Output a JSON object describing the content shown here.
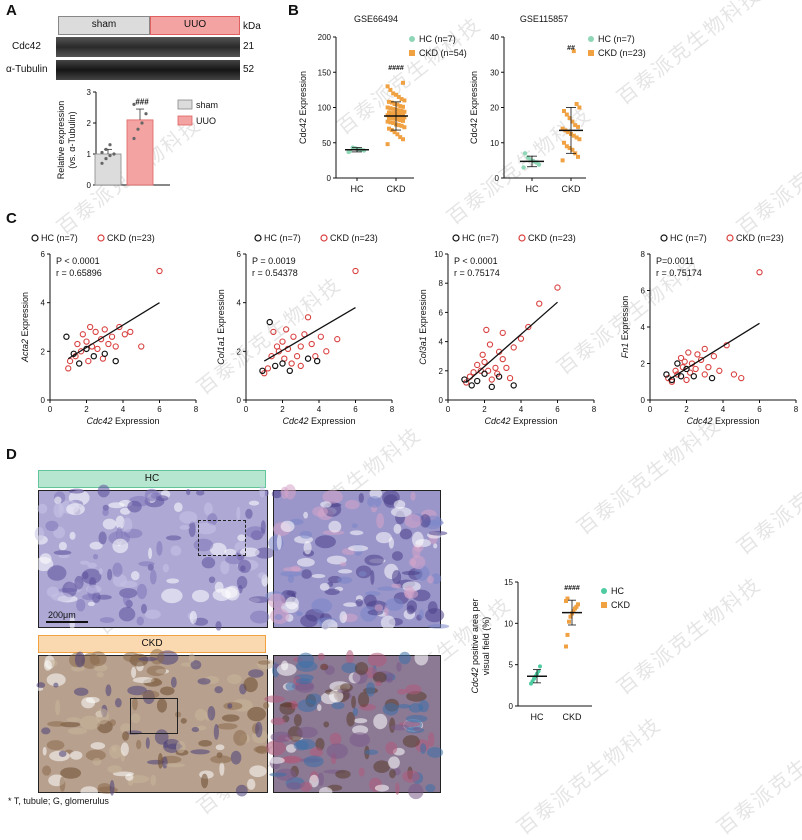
{
  "figure": {
    "panels": {
      "a": "A",
      "b": "B",
      "c": "C",
      "d": "D"
    },
    "watermark": "百泰派克生物科技",
    "footnote": "* T, tubule; G, glomerulus"
  },
  "panel_a": {
    "group_sham": "sham",
    "group_uuo": "UUO",
    "kda_label": "kDa",
    "rows": [
      {
        "protein": "Cdc42",
        "kda": "21"
      },
      {
        "protein": "α-Tubulin",
        "kda": "52"
      }
    ],
    "colors": {
      "sham": "#dcdcdc",
      "uuo": "#f4a3a3",
      "uuo_border": "#e06060"
    }
  },
  "panel_d": {
    "hc_label": "HC",
    "ckd_label": "CKD",
    "scale_bar": "200μm",
    "colors": {
      "hc": "#8fd6b6",
      "ckd": "#f7c48a"
    }
  },
  "chart_data": [
    {
      "id": "a_bar",
      "type": "bar",
      "categories": [
        "sham",
        "UUO"
      ],
      "values": [
        1.0,
        2.1
      ],
      "errors": [
        0.15,
        0.35
      ],
      "points": [
        [
          0.7,
          0.85,
          0.95,
          1.0,
          1.05,
          1.15,
          1.3
        ],
        [
          1.5,
          1.8,
          2.0,
          2.3,
          2.6
        ]
      ],
      "ylabel": "Relative expression\n(vs. α-Tubulin)",
      "ylim": [
        0,
        3
      ],
      "yticks": [
        0,
        1,
        2,
        3
      ],
      "significance": "###",
      "legend": [
        "sham",
        "UUO"
      ],
      "colors": [
        "#dcdcdc",
        "#f4a3a3"
      ]
    },
    {
      "id": "b_gse66494",
      "type": "scatter",
      "title": "GSE66494",
      "categories": [
        "HC",
        "CKD"
      ],
      "ylabel": "Cdc42 Expression",
      "ylim": [
        0,
        200
      ],
      "yticks": [
        0,
        50,
        100,
        150,
        200
      ],
      "means": [
        40,
        88
      ],
      "sd": [
        3,
        20
      ],
      "points": [
        [
          37,
          39,
          40,
          41,
          42,
          43,
          38
        ],
        [
          48,
          55,
          58,
          62,
          65,
          68,
          70,
          72,
          74,
          75,
          76,
          78,
          79,
          80,
          81,
          82,
          83,
          84,
          85,
          85,
          86,
          86,
          87,
          87,
          88,
          88,
          89,
          90,
          90,
          91,
          92,
          92,
          93,
          94,
          95,
          96,
          97,
          98,
          99,
          100,
          101,
          102,
          104,
          105,
          107,
          108,
          110,
          112,
          115,
          118,
          120,
          125,
          130,
          135
        ]
      ],
      "significance": "####",
      "legend": [
        "HC (n=7)",
        "CKD (n=54)"
      ],
      "colors": [
        "#8fd6b6",
        "#f0a142"
      ]
    },
    {
      "id": "b_gse115857",
      "type": "scatter",
      "title": "GSE115857",
      "categories": [
        "HC",
        "CKD"
      ],
      "ylabel": "Cdc42 Expression",
      "ylim": [
        0,
        40
      ],
      "yticks": [
        0,
        10,
        20,
        30,
        40
      ],
      "means": [
        4.7,
        13.5
      ],
      "sd": [
        1.5,
        6.5
      ],
      "points": [
        [
          3.0,
          3.8,
          4.4,
          4.8,
          5.2,
          5.8,
          7.0
        ],
        [
          5.0,
          6.0,
          7.0,
          8.0,
          8.5,
          9.0,
          10.0,
          11.0,
          11.5,
          12.0,
          12.5,
          13.0,
          13.5,
          14.0,
          14.5,
          15.0,
          16.0,
          17.0,
          18.0,
          19.0,
          20.0,
          21.0,
          36.0
        ]
      ],
      "significance": "##",
      "legend": [
        "HC (n=7)",
        "CKD (n=23)"
      ],
      "colors": [
        "#8fd6b6",
        "#f0a142"
      ]
    },
    {
      "id": "c_acta2",
      "type": "scatter",
      "ylabel": "Acta2 Expression",
      "xlabel": "Cdc42 Expression",
      "xlim": [
        0,
        8
      ],
      "ylim": [
        0,
        6
      ],
      "xticks": [
        0,
        2,
        4,
        6,
        8
      ],
      "yticks": [
        0,
        2,
        4,
        6
      ],
      "stats": [
        "P < 0.0001",
        "r = 0.65896"
      ],
      "legend": [
        "HC (n=7)",
        "CKD (n=23)"
      ],
      "fit": [
        [
          1.0,
          1.7
        ],
        [
          6.0,
          4.0
        ]
      ],
      "hc": [
        [
          0.9,
          2.6
        ],
        [
          1.3,
          1.9
        ],
        [
          1.6,
          1.5
        ],
        [
          2.0,
          2.1
        ],
        [
          2.4,
          1.8
        ],
        [
          3.0,
          1.9
        ],
        [
          3.6,
          1.6
        ]
      ],
      "ckd": [
        [
          1.0,
          1.3
        ],
        [
          1.1,
          1.6
        ],
        [
          1.4,
          1.8
        ],
        [
          1.5,
          2.3
        ],
        [
          1.7,
          2.0
        ],
        [
          1.8,
          2.7
        ],
        [
          2.0,
          2.4
        ],
        [
          2.1,
          1.6
        ],
        [
          2.2,
          3.0
        ],
        [
          2.3,
          2.2
        ],
        [
          2.5,
          2.8
        ],
        [
          2.6,
          2.1
        ],
        [
          2.8,
          2.5
        ],
        [
          2.9,
          1.7
        ],
        [
          3.0,
          2.9
        ],
        [
          3.2,
          2.3
        ],
        [
          3.4,
          2.6
        ],
        [
          3.6,
          2.2
        ],
        [
          3.8,
          3.0
        ],
        [
          4.1,
          2.7
        ],
        [
          4.4,
          2.8
        ],
        [
          5.0,
          2.2
        ],
        [
          6.0,
          5.3
        ]
      ]
    },
    {
      "id": "c_col1a1",
      "type": "scatter",
      "ylabel": "Col1a1 Expression",
      "xlabel": "Cdc42 Expression",
      "xlim": [
        0,
        8
      ],
      "ylim": [
        0,
        6
      ],
      "xticks": [
        0,
        2,
        4,
        6,
        8
      ],
      "yticks": [
        0,
        2,
        4,
        6
      ],
      "stats": [
        "P = 0.0019",
        "r = 0.54378"
      ],
      "legend": [
        "HC (n=7)",
        "CKD (n=23)"
      ],
      "fit": [
        [
          1.0,
          1.6
        ],
        [
          6.0,
          3.8
        ]
      ],
      "hc": [
        [
          0.9,
          1.2
        ],
        [
          1.3,
          3.2
        ],
        [
          1.6,
          1.4
        ],
        [
          2.0,
          1.5
        ],
        [
          2.4,
          1.2
        ],
        [
          3.4,
          1.7
        ],
        [
          3.9,
          1.6
        ]
      ],
      "ckd": [
        [
          1.0,
          1.1
        ],
        [
          1.2,
          1.3
        ],
        [
          1.4,
          1.8
        ],
        [
          1.5,
          2.8
        ],
        [
          1.7,
          2.2
        ],
        [
          1.8,
          2.0
        ],
        [
          2.0,
          2.4
        ],
        [
          2.1,
          1.7
        ],
        [
          2.2,
          2.9
        ],
        [
          2.3,
          2.1
        ],
        [
          2.5,
          1.5
        ],
        [
          2.6,
          2.6
        ],
        [
          2.8,
          1.8
        ],
        [
          3.0,
          1.4
        ],
        [
          3.0,
          2.2
        ],
        [
          3.2,
          2.7
        ],
        [
          3.4,
          3.4
        ],
        [
          3.6,
          2.3
        ],
        [
          3.8,
          1.8
        ],
        [
          4.1,
          2.6
        ],
        [
          4.4,
          2.0
        ],
        [
          5.0,
          2.5
        ],
        [
          6.0,
          5.3
        ]
      ]
    },
    {
      "id": "c_col3a1",
      "type": "scatter",
      "ylabel": "Col3a1 Expression",
      "xlabel": "Cdc42 Expression",
      "xlim": [
        0,
        8
      ],
      "ylim": [
        0,
        10
      ],
      "xticks": [
        0,
        2,
        4,
        6,
        8
      ],
      "yticks": [
        0,
        2,
        4,
        6,
        8,
        10
      ],
      "stats": [
        "P < 0.0001",
        "r = 0.75174"
      ],
      "legend": [
        "HC (n=7)",
        "CKD (n=23)"
      ],
      "fit": [
        [
          1.0,
          1.2
        ],
        [
          6.0,
          6.7
        ]
      ],
      "hc": [
        [
          0.9,
          1.4
        ],
        [
          1.3,
          1.0
        ],
        [
          1.6,
          1.3
        ],
        [
          2.0,
          1.8
        ],
        [
          2.4,
          0.9
        ],
        [
          2.8,
          1.6
        ],
        [
          3.6,
          1.0
        ]
      ],
      "ckd": [
        [
          1.0,
          1.2
        ],
        [
          1.2,
          1.6
        ],
        [
          1.4,
          1.9
        ],
        [
          1.6,
          2.4
        ],
        [
          1.8,
          2.0
        ],
        [
          1.9,
          3.1
        ],
        [
          2.0,
          2.6
        ],
        [
          2.1,
          4.8
        ],
        [
          2.2,
          2.0
        ],
        [
          2.3,
          3.8
        ],
        [
          2.4,
          1.4
        ],
        [
          2.6,
          2.2
        ],
        [
          2.7,
          1.8
        ],
        [
          2.8,
          3.3
        ],
        [
          3.0,
          2.8
        ],
        [
          3.0,
          4.6
        ],
        [
          3.2,
          2.2
        ],
        [
          3.4,
          1.5
        ],
        [
          3.6,
          3.6
        ],
        [
          4.0,
          4.2
        ],
        [
          4.4,
          5.0
        ],
        [
          5.0,
          6.6
        ],
        [
          6.0,
          7.7
        ]
      ]
    },
    {
      "id": "c_fn1",
      "type": "scatter",
      "ylabel": "Fn1 Expression",
      "xlabel": "Cdc42 Expression",
      "xlim": [
        0,
        8
      ],
      "ylim": [
        0,
        8
      ],
      "xticks": [
        0,
        2,
        4,
        6,
        8
      ],
      "yticks": [
        0,
        2,
        4,
        6,
        8
      ],
      "stats": [
        "P=0.0011",
        "r = 0.75174"
      ],
      "legend": [
        "HC (n=7)",
        "CKD (n=23)"
      ],
      "fit": [
        [
          1.0,
          1.1
        ],
        [
          6.0,
          4.2
        ]
      ],
      "hc": [
        [
          0.9,
          1.4
        ],
        [
          1.2,
          1.1
        ],
        [
          1.5,
          2.0
        ],
        [
          1.7,
          1.3
        ],
        [
          2.0,
          1.7
        ],
        [
          2.4,
          1.3
        ],
        [
          3.4,
          1.2
        ]
      ],
      "ckd": [
        [
          1.0,
          1.2
        ],
        [
          1.2,
          1.0
        ],
        [
          1.4,
          1.6
        ],
        [
          1.5,
          1.4
        ],
        [
          1.7,
          2.3
        ],
        [
          1.8,
          1.8
        ],
        [
          1.9,
          2.1
        ],
        [
          2.0,
          1.1
        ],
        [
          2.1,
          2.6
        ],
        [
          2.2,
          1.5
        ],
        [
          2.3,
          2.0
        ],
        [
          2.5,
          1.7
        ],
        [
          2.6,
          2.5
        ],
        [
          2.8,
          2.2
        ],
        [
          3.0,
          1.4
        ],
        [
          3.0,
          2.8
        ],
        [
          3.2,
          1.8
        ],
        [
          3.5,
          2.4
        ],
        [
          3.8,
          1.6
        ],
        [
          4.2,
          3.0
        ],
        [
          4.6,
          1.4
        ],
        [
          5.0,
          1.2
        ],
        [
          6.0,
          7.0
        ]
      ]
    },
    {
      "id": "d_dot",
      "type": "scatter",
      "categories": [
        "HC",
        "CKD"
      ],
      "ylabel": "Cdc42 positive area per\nvisual field (%)",
      "ylim": [
        0,
        15
      ],
      "yticks": [
        0,
        5,
        10,
        15
      ],
      "means": [
        3.6,
        11.3
      ],
      "sd": [
        0.8,
        1.5
      ],
      "points": [
        [
          2.7,
          3.0,
          3.3,
          3.6,
          3.9,
          4.2,
          4.8
        ],
        [
          7.2,
          8.6,
          10.2,
          10.8,
          11.2,
          11.5,
          11.8,
          12.0,
          12.3,
          12.7,
          13.0
        ]
      ],
      "significance": "####",
      "legend": [
        "HC",
        "CKD"
      ],
      "colors": [
        "#4ecba0",
        "#f0a142"
      ]
    }
  ]
}
